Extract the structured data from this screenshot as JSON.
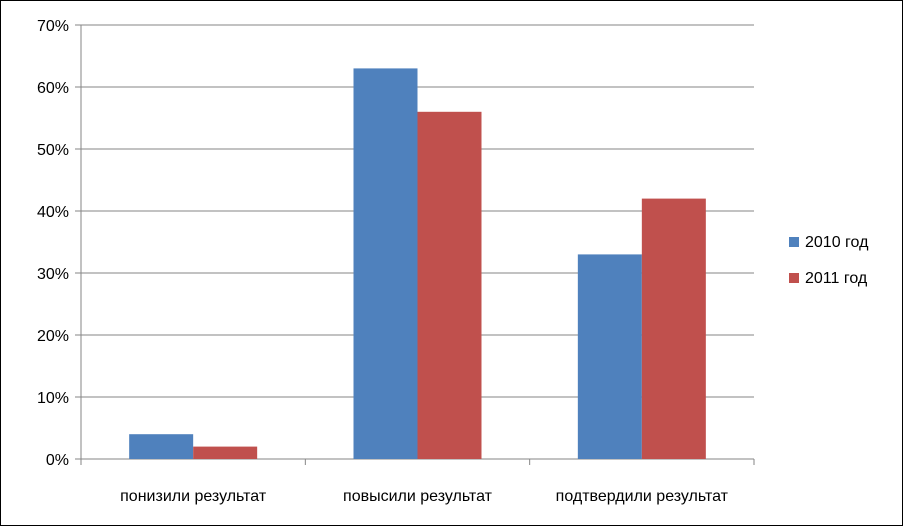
{
  "chart_data": {
    "type": "bar",
    "categories": [
      "понизили результат",
      "повысили результат",
      "подтвердили результат"
    ],
    "series": [
      {
        "name": "2010 год",
        "values": [
          4,
          63,
          33
        ],
        "color": "#4F81BD"
      },
      {
        "name": "2011 год",
        "values": [
          2,
          56,
          42
        ],
        "color": "#C0504D"
      }
    ],
    "y_ticks": [
      "0%",
      "10%",
      "20%",
      "30%",
      "40%",
      "50%",
      "60%",
      "70%"
    ],
    "ylim": [
      0,
      70
    ],
    "y_unit": "%",
    "grid": true,
    "legend_position": "right"
  }
}
